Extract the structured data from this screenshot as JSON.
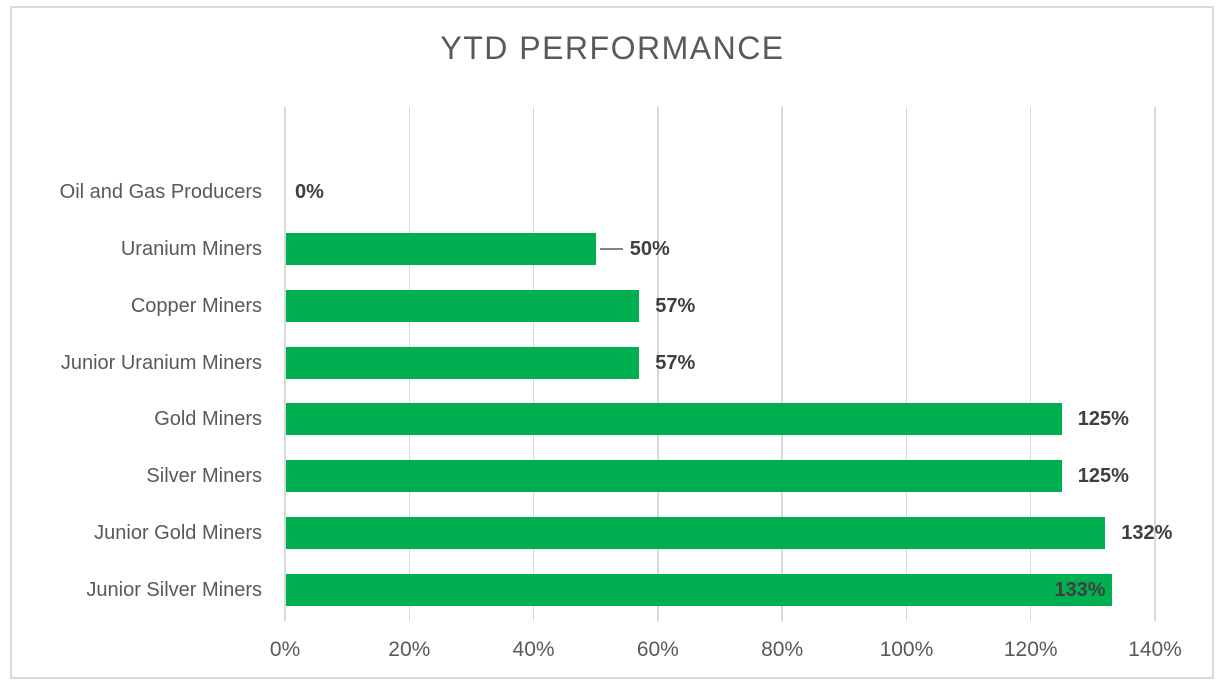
{
  "title": "YTD PERFORMANCE",
  "colors": {
    "bar": "#00B050",
    "gridline": "#D9D9D9",
    "frame": "#D9D9D9",
    "title_text": "#595959",
    "axis_text": "#595959",
    "data_label_text": "#3F3F3F",
    "leader_line": "#848484",
    "background": "#FFFFFF"
  },
  "chart_data": {
    "type": "bar",
    "orientation": "horizontal",
    "title": "YTD PERFORMANCE",
    "categories": [
      "Oil and Gas Producers",
      "Uranium Miners",
      "Copper Miners",
      "Junior Uranium Miners",
      "Gold Miners",
      "Silver Miners",
      "Junior Gold Miners",
      "Junior Silver Miners"
    ],
    "values": [
      0,
      50,
      57,
      57,
      125,
      125,
      132,
      133
    ],
    "data_labels": [
      "0%",
      "50%",
      "57%",
      "57%",
      "125%",
      "125%",
      "132%",
      "133%"
    ],
    "label_placement": [
      "outside",
      "moved-leader",
      "outside",
      "outside",
      "outside",
      "outside",
      "outside",
      "inside"
    ],
    "x_ticks": [
      "0%",
      "20%",
      "40%",
      "60%",
      "80%",
      "100%",
      "120%",
      "140%"
    ],
    "xlim": [
      0,
      140
    ],
    "xlabel": "",
    "ylabel": "",
    "grid": true,
    "legend": false
  }
}
